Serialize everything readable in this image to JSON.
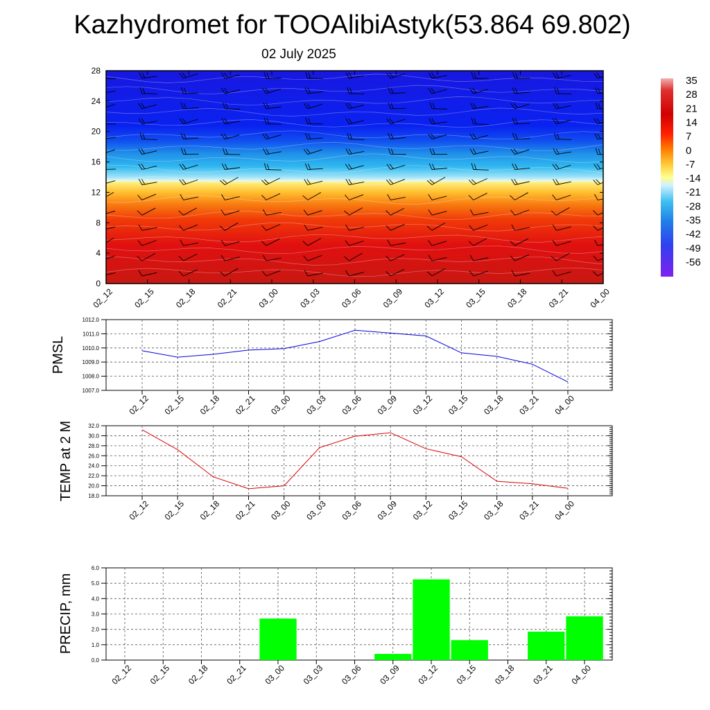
{
  "title": "Kazhydromet for TOOAlibiAstyk(53.864 69.802)",
  "subtitle": "02 July 2025",
  "colors": {
    "pmsl_line": "#0000dd",
    "temp_line": "#dd0000",
    "precip_bar": "#00ff00",
    "grid": "#555555"
  },
  "chart_data": [
    {
      "type": "heatmap",
      "name": "cross-section",
      "x": [
        "02_12",
        "02_15",
        "02_18",
        "02_21",
        "03_00",
        "03_03",
        "03_06",
        "03_09",
        "03_12",
        "03_15",
        "03_18",
        "03_21",
        "04_00"
      ],
      "y_ticks": [
        "0",
        "4",
        "8",
        "12",
        "16",
        "20",
        "24",
        "28"
      ],
      "ylim": [
        0,
        28
      ],
      "colorbar": {
        "labels": [
          "35",
          "28",
          "21",
          "14",
          "7",
          "0",
          "-7",
          "-14",
          "-21",
          "-28",
          "-35",
          "-42",
          "-49",
          "-56"
        ],
        "range": [
          -60,
          36
        ]
      },
      "grid": false,
      "legend": "right"
    },
    {
      "type": "line",
      "name": "pmsl",
      "ylabel": "PMSL",
      "x": [
        "02_12",
        "02_15",
        "02_18",
        "02_21",
        "03_00",
        "03_03",
        "03_06",
        "03_09",
        "03_12",
        "03_15",
        "03_18",
        "03_21",
        "04_00"
      ],
      "values": [
        1009.8,
        1009.35,
        1009.55,
        1009.85,
        1009.95,
        1010.45,
        1011.25,
        1011.05,
        1010.85,
        1009.65,
        1009.4,
        1008.85,
        1007.6
      ],
      "ylim": [
        1007.0,
        1012.0
      ],
      "yticks": [
        "1007.0",
        "1008.0",
        "1009.0",
        "1010.0",
        "1011.0",
        "1012.0"
      ],
      "grid": true
    },
    {
      "type": "line",
      "name": "temp",
      "ylabel": "TEMP at 2 M",
      "x": [
        "02_12",
        "02_15",
        "02_18",
        "02_21",
        "03_00",
        "03_03",
        "03_06",
        "03_09",
        "03_12",
        "03_15",
        "03_18",
        "03_21",
        "04_00"
      ],
      "values": [
        31.2,
        27.2,
        21.8,
        19.4,
        20.0,
        27.6,
        29.9,
        30.6,
        27.4,
        25.8,
        20.9,
        20.4,
        19.5
      ],
      "ylim": [
        18.0,
        32.0
      ],
      "yticks": [
        "18.0",
        "20.0",
        "22.0",
        "24.0",
        "26.0",
        "28.0",
        "30.0",
        "32.0"
      ],
      "grid": true
    },
    {
      "type": "bar",
      "name": "precip",
      "ylabel": "PRECIP, mm",
      "categories": [
        "02_12",
        "02_15",
        "02_18",
        "02_21",
        "03_00",
        "03_03",
        "03_06",
        "03_09",
        "03_12",
        "03_15",
        "03_18",
        "03_21",
        "04_00"
      ],
      "values": [
        0,
        0,
        0,
        0,
        2.7,
        0,
        0,
        0.4,
        5.25,
        1.3,
        0,
        1.85,
        2.85
      ],
      "ylim": [
        0.0,
        6.0
      ],
      "yticks": [
        "0.0",
        "1.0",
        "2.0",
        "3.0",
        "4.0",
        "5.0",
        "6.0"
      ],
      "grid": true
    }
  ]
}
